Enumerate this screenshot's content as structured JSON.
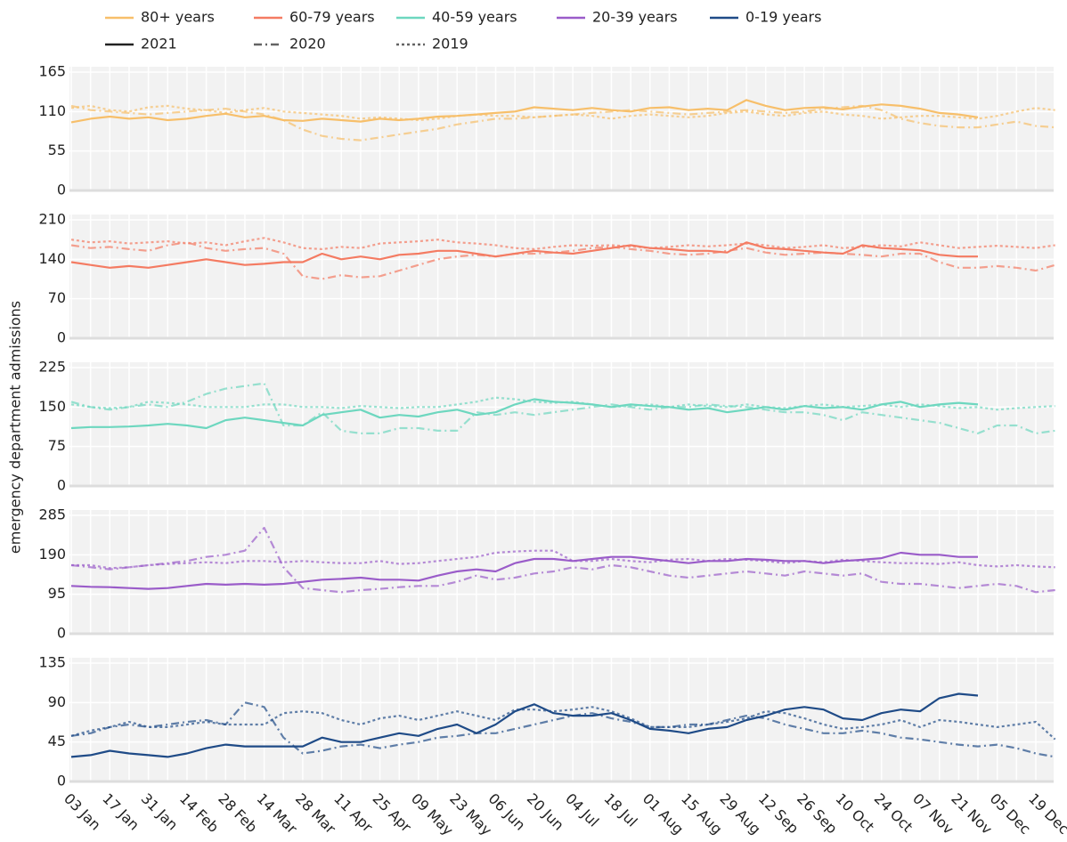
{
  "chart_data": {
    "type": "line",
    "y_label": "emergency department admissions",
    "grid": true,
    "categories": [
      "03 Jan",
      null,
      "17 Jan",
      null,
      "31 Jan",
      null,
      "14 Feb",
      null,
      "28 Feb",
      null,
      "14 Mar",
      null,
      "28 Mar",
      null,
      "11 Apr",
      null,
      "25 Apr",
      null,
      "09 May",
      null,
      "23 May",
      null,
      "06 Jun",
      null,
      "20 Jun",
      null,
      "04 Jul",
      null,
      "18 Jul",
      null,
      "01 Aug",
      null,
      "15 Aug",
      null,
      "29 Aug",
      null,
      "12 Sep",
      null,
      "26 Sep",
      null,
      "10 Oct",
      null,
      "24 Oct",
      null,
      "07 Nov",
      null,
      "21 Nov",
      null,
      "05 Dec",
      null,
      "19 Dec",
      null
    ],
    "styles": [
      {
        "name": "2021",
        "dash": "solid",
        "opacity": 1
      },
      {
        "name": "2020",
        "dash": "dashdot",
        "opacity": 0.7
      },
      {
        "name": "2019",
        "dash": "dot",
        "opacity": 0.7
      }
    ],
    "panels": [
      {
        "name": "80+ years",
        "color": "#f7bf6a",
        "ylim": [
          0,
          165
        ],
        "yticks": [
          0,
          55,
          110,
          165
        ],
        "series": [
          {
            "values": [
              95,
              100,
              103,
              100,
              102,
              98,
              100,
              104,
              107,
              102,
              104,
              98,
              97,
              100,
              98,
              96,
              100,
              98,
              100,
              103,
              104,
              106,
              108,
              110,
              116,
              114,
              112,
              115,
              112,
              110,
              115,
              116,
              112,
              114,
              112,
              126,
              118,
              112,
              115,
              116,
              113,
              117,
              120,
              118,
              114,
              108,
              106,
              102,
              null,
              null,
              null,
              null
            ]
          },
          {
            "values": [
              118,
              112,
              110,
              108,
              106,
              108,
              110,
              112,
              114,
              110,
              106,
              98,
              85,
              76,
              72,
              70,
              74,
              78,
              82,
              86,
              92,
              96,
              100,
              100,
              102,
              104,
              106,
              108,
              110,
              112,
              110,
              108,
              106,
              108,
              110,
              112,
              110,
              108,
              110,
              114,
              116,
              118,
              112,
              100,
              94,
              90,
              88,
              88,
              92,
              96,
              90,
              88
            ]
          },
          {
            "values": [
              115,
              118,
              112,
              110,
              116,
              118,
              114,
              112,
              108,
              112,
              115,
              110,
              108,
              106,
              104,
              100,
              102,
              100,
              98,
              100,
              104,
              106,
              104,
              104,
              102,
              104,
              106,
              104,
              100,
              104,
              106,
              104,
              102,
              104,
              108,
              110,
              106,
              104,
              108,
              110,
              106,
              104,
              100,
              102,
              104,
              104,
              102,
              100,
              104,
              110,
              115,
              112
            ]
          }
        ]
      },
      {
        "name": "60-79 years",
        "color": "#f47b62",
        "ylim": [
          0,
          210
        ],
        "yticks": [
          0,
          70,
          140,
          210
        ],
        "series": [
          {
            "values": [
              135,
              130,
              125,
              128,
              125,
              130,
              135,
              140,
              135,
              130,
              132,
              135,
              135,
              150,
              140,
              145,
              140,
              148,
              150,
              155,
              155,
              150,
              145,
              150,
              155,
              152,
              150,
              155,
              160,
              165,
              160,
              158,
              155,
              155,
              152,
              170,
              160,
              158,
              155,
              152,
              150,
              165,
              160,
              158,
              156,
              148,
              145,
              145,
              null,
              null,
              null,
              null
            ]
          },
          {
            "values": [
              165,
              160,
              162,
              158,
              155,
              165,
              170,
              160,
              155,
              158,
              160,
              150,
              110,
              105,
              112,
              108,
              110,
              120,
              130,
              140,
              145,
              148,
              145,
              150,
              150,
              152,
              155,
              160,
              162,
              158,
              155,
              150,
              148,
              150,
              155,
              160,
              152,
              148,
              150,
              152,
              150,
              148,
              145,
              150,
              150,
              135,
              125,
              125,
              128,
              125,
              120,
              130
            ]
          },
          {
            "values": [
              175,
              170,
              172,
              168,
              170,
              172,
              168,
              170,
              165,
              172,
              178,
              170,
              160,
              158,
              162,
              160,
              168,
              170,
              172,
              175,
              170,
              168,
              165,
              160,
              158,
              162,
              165,
              164,
              165,
              163,
              160,
              162,
              165,
              163,
              165,
              168,
              165,
              160,
              162,
              165,
              160,
              162,
              165,
              163,
              170,
              165,
              160,
              162,
              164,
              162,
              160,
              165
            ]
          }
        ]
      },
      {
        "name": "40-59 years",
        "color": "#6dd7bf",
        "ylim": [
          0,
          225
        ],
        "yticks": [
          0,
          75,
          150,
          225
        ],
        "series": [
          {
            "values": [
              110,
              112,
              112,
              113,
              115,
              118,
              115,
              110,
              125,
              130,
              125,
              120,
              115,
              135,
              140,
              145,
              130,
              135,
              132,
              140,
              145,
              135,
              140,
              155,
              165,
              160,
              158,
              155,
              150,
              155,
              152,
              150,
              145,
              148,
              140,
              145,
              150,
              145,
              152,
              148,
              150,
              145,
              155,
              160,
              150,
              155,
              158,
              155,
              null,
              null,
              null,
              null
            ]
          },
          {
            "values": [
              160,
              150,
              145,
              150,
              155,
              150,
              160,
              175,
              185,
              190,
              195,
              115,
              115,
              140,
              105,
              100,
              100,
              110,
              110,
              105,
              105,
              140,
              135,
              140,
              135,
              140,
              145,
              150,
              155,
              150,
              145,
              150,
              150,
              155,
              152,
              150,
              145,
              140,
              140,
              135,
              125,
              140,
              135,
              130,
              125,
              120,
              110,
              100,
              115,
              115,
              100,
              105
            ]
          },
          {
            "values": [
              155,
              150,
              148,
              150,
              160,
              158,
              155,
              150,
              150,
              150,
              155,
              155,
              150,
              150,
              148,
              152,
              150,
              148,
              150,
              150,
              155,
              160,
              168,
              165,
              160,
              158,
              160,
              155,
              150,
              152,
              155,
              150,
              155,
              152,
              150,
              155,
              150,
              148,
              152,
              155,
              150,
              152,
              155,
              150,
              155,
              152,
              148,
              150,
              145,
              148,
              150,
              152
            ]
          }
        ]
      },
      {
        "name": "20-39 years",
        "color": "#9a5cc9",
        "ylim": [
          0,
          285
        ],
        "yticks": [
          0,
          95,
          190,
          285
        ],
        "series": [
          {
            "values": [
              115,
              113,
              112,
              110,
              108,
              110,
              115,
              120,
              118,
              120,
              118,
              120,
              125,
              130,
              132,
              135,
              130,
              130,
              128,
              140,
              150,
              155,
              150,
              170,
              180,
              180,
              175,
              180,
              185,
              185,
              180,
              175,
              170,
              175,
              175,
              180,
              178,
              175,
              175,
              170,
              175,
              178,
              182,
              195,
              190,
              190,
              185,
              185,
              null,
              null,
              null,
              null
            ]
          },
          {
            "values": [
              165,
              160,
              155,
              160,
              165,
              170,
              175,
              185,
              190,
              200,
              255,
              160,
              110,
              105,
              100,
              105,
              108,
              112,
              115,
              115,
              125,
              140,
              130,
              135,
              145,
              150,
              160,
              155,
              165,
              160,
              150,
              140,
              135,
              140,
              145,
              150,
              145,
              140,
              150,
              145,
              140,
              145,
              125,
              120,
              120,
              115,
              110,
              115,
              120,
              115,
              100,
              105
            ]
          },
          {
            "values": [
              165,
              165,
              158,
              160,
              165,
              168,
              170,
              172,
              170,
              175,
              175,
              172,
              175,
              172,
              170,
              170,
              175,
              168,
              170,
              175,
              180,
              185,
              195,
              198,
              200,
              200,
              175,
              175,
              180,
              175,
              172,
              178,
              180,
              175,
              180,
              178,
              175,
              170,
              175,
              172,
              178,
              175,
              172,
              170,
              170,
              168,
              172,
              165,
              162,
              165,
              162,
              160
            ]
          }
        ]
      },
      {
        "name": "0-19 years",
        "color": "#1f4b87",
        "ylim": [
          0,
          135
        ],
        "yticks": [
          0,
          45,
          90,
          135
        ],
        "series": [
          {
            "values": [
              28,
              30,
              35,
              32,
              30,
              28,
              32,
              38,
              42,
              40,
              40,
              40,
              40,
              50,
              45,
              45,
              50,
              55,
              52,
              60,
              65,
              55,
              65,
              80,
              88,
              78,
              75,
              75,
              78,
              70,
              60,
              58,
              55,
              60,
              62,
              70,
              75,
              82,
              85,
              82,
              72,
              70,
              78,
              82,
              80,
              95,
              100,
              98,
              null,
              null,
              null,
              null
            ]
          },
          {
            "values": [
              52,
              55,
              62,
              65,
              62,
              65,
              68,
              70,
              65,
              90,
              85,
              50,
              32,
              35,
              40,
              42,
              38,
              42,
              45,
              50,
              52,
              55,
              55,
              60,
              65,
              70,
              75,
              78,
              72,
              68,
              62,
              62,
              65,
              65,
              70,
              75,
              72,
              65,
              60,
              55,
              55,
              58,
              55,
              50,
              48,
              45,
              42,
              40,
              42,
              38,
              32,
              28
            ]
          },
          {
            "values": [
              52,
              58,
              62,
              68,
              62,
              62,
              65,
              68,
              65,
              65,
              65,
              78,
              80,
              78,
              70,
              65,
              72,
              75,
              70,
              75,
              80,
              75,
              70,
              82,
              82,
              80,
              82,
              85,
              80,
              72,
              62,
              62,
              62,
              65,
              68,
              72,
              80,
              78,
              72,
              65,
              60,
              62,
              65,
              70,
              62,
              70,
              68,
              65,
              62,
              65,
              68,
              48
            ]
          }
        ]
      }
    ]
  }
}
